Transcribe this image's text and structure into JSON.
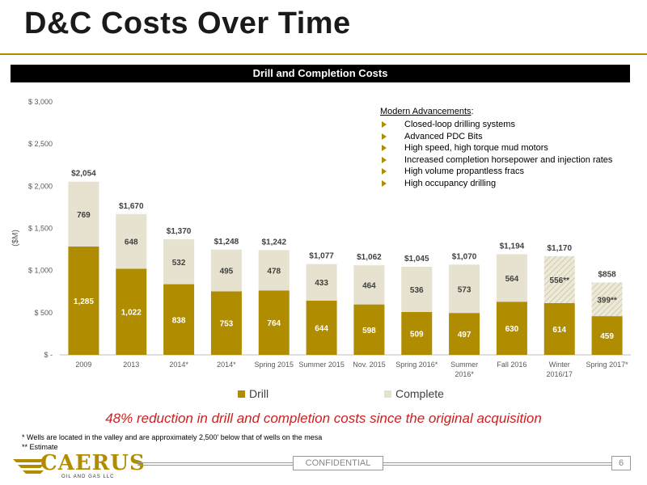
{
  "page": {
    "title": "D&C Costs Over Time",
    "banner": "Drill and Completion Costs",
    "headline": "48% reduction in drill and completion costs since the original acquisition",
    "footnotes": [
      "* Wells are located in the valley and are approximately 2,500' below that of wells on the mesa",
      "** Estimate"
    ],
    "confidential": "CONFIDENTIAL",
    "page_number": "6",
    "logo_text": "CAERUS",
    "logo_sub": "OIL AND GAS LLC",
    "colors": {
      "gold": "#b08d00",
      "beige": "#e6e2cf",
      "headline": "#cc1f1f",
      "banner": "#000000"
    }
  },
  "advancements": {
    "heading": "Modern Advancements",
    "items": [
      "Closed-loop drilling systems",
      "Advanced PDC Bits",
      "High speed, high torque mud motors",
      "Increased completion horsepower and injection rates",
      "High volume propantless fracs",
      "High occupancy drilling"
    ]
  },
  "chart_data": {
    "type": "bar",
    "stacked": true,
    "categories": [
      "2009",
      "2013",
      "2014*",
      "2014*",
      "Spring 2015",
      "Summer 2015",
      "Nov. 2015",
      "Spring 2016*",
      "Summer 2016*",
      "Fall 2016",
      "Winter 2016/17",
      "Spring 2017*"
    ],
    "series": [
      {
        "name": "Drill",
        "color": "#b08d00",
        "values": [
          1285,
          1022,
          838,
          753,
          764,
          644,
          598,
          509,
          497,
          630,
          614,
          459
        ],
        "labels": [
          "1,285",
          "1,022",
          "838",
          "753",
          "764",
          "644",
          "598",
          "509",
          "497",
          "630",
          "614",
          "459"
        ]
      },
      {
        "name": "Complete",
        "color": "#e6e2cf",
        "values": [
          769,
          648,
          532,
          495,
          478,
          433,
          464,
          536,
          573,
          564,
          556,
          399
        ],
        "labels": [
          "769",
          "648",
          "532",
          "495",
          "478",
          "433",
          "464",
          "536",
          "573",
          "564",
          "556**",
          "399**"
        ],
        "estimated": [
          false,
          false,
          false,
          false,
          false,
          false,
          false,
          false,
          false,
          false,
          true,
          true
        ]
      }
    ],
    "totals": [
      "$2,054",
      "$1,670",
      "$1,370",
      "$1,248",
      "$1,242",
      "$1,077",
      "$1,062",
      "$1,045",
      "$1,070",
      "$1,194",
      "$1,170",
      "$858"
    ],
    "ylabel": "($M)",
    "ylim": [
      0,
      3000
    ],
    "yticks": [
      0,
      500,
      1000,
      1500,
      2000,
      2500,
      3000
    ],
    "ytick_labels": [
      "$ -",
      "$ 500",
      "$ 1,000",
      "$ 1,500",
      "$ 2,000",
      "$ 2,500",
      "$ 3,000"
    ],
    "legend_position": "bottom",
    "grid": false
  }
}
